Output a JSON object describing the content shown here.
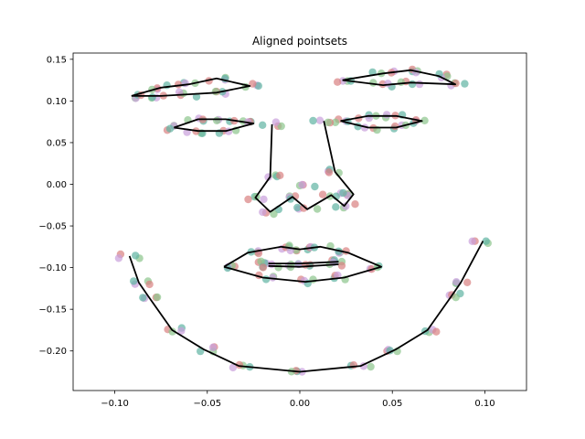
{
  "chart_data": {
    "type": "scatter",
    "title": "Aligned pointsets",
    "xlabel": "",
    "ylabel": "",
    "xlim": [
      -0.1225,
      0.1225
    ],
    "ylim": [
      -0.2475,
      0.1575
    ],
    "grid": false,
    "x_ticks": [
      -0.1,
      -0.05,
      0.0,
      0.05,
      0.1
    ],
    "x_tick_labels": [
      "−0.10",
      "−0.05",
      "0.00",
      "0.05",
      "0.10"
    ],
    "y_ticks": [
      -0.2,
      -0.15,
      -0.1,
      -0.05,
      0.0,
      0.05,
      0.1,
      0.15
    ],
    "y_tick_labels": [
      "−0.20",
      "−0.15",
      "−0.10",
      "−0.05",
      "0.00",
      "0.05",
      "0.10",
      "0.15"
    ],
    "point_colors": [
      "#d98080",
      "#8cc58c",
      "#c9a0dc",
      "#5fb3a3"
    ],
    "mean_shape": {
      "color": "#000000",
      "polylines": [
        [
          [
            -0.092,
            -0.086
          ],
          [
            -0.087,
            -0.118
          ],
          [
            -0.082,
            -0.134
          ],
          [
            -0.069,
            -0.175
          ],
          [
            -0.052,
            -0.198
          ],
          [
            -0.033,
            -0.218
          ],
          [
            0.0,
            -0.225
          ],
          [
            0.033,
            -0.218
          ],
          [
            0.052,
            -0.198
          ],
          [
            0.069,
            -0.175
          ],
          [
            0.082,
            -0.134
          ],
          [
            0.087,
            -0.118
          ],
          [
            0.099,
            -0.068
          ]
        ],
        [
          [
            -0.091,
            0.106
          ],
          [
            -0.075,
            0.116
          ],
          [
            -0.06,
            0.12
          ],
          [
            -0.045,
            0.127
          ],
          [
            -0.027,
            0.118
          ],
          [
            -0.045,
            0.11
          ],
          [
            -0.06,
            0.108
          ],
          [
            -0.075,
            0.106
          ],
          [
            -0.091,
            0.106
          ]
        ],
        [
          [
            0.023,
            0.125
          ],
          [
            0.045,
            0.133
          ],
          [
            0.06,
            0.137
          ],
          [
            0.075,
            0.13
          ],
          [
            0.084,
            0.12
          ],
          [
            0.06,
            0.122
          ],
          [
            0.045,
            0.119
          ],
          [
            0.023,
            0.125
          ]
        ],
        [
          [
            -0.068,
            0.068
          ],
          [
            -0.055,
            0.078
          ],
          [
            -0.04,
            0.078
          ],
          [
            -0.025,
            0.073
          ],
          [
            -0.04,
            0.064
          ],
          [
            -0.055,
            0.064
          ],
          [
            -0.068,
            0.068
          ]
        ],
        [
          [
            0.022,
            0.076
          ],
          [
            0.037,
            0.082
          ],
          [
            0.052,
            0.082
          ],
          [
            0.066,
            0.076
          ],
          [
            0.052,
            0.068
          ],
          [
            0.037,
            0.068
          ],
          [
            0.022,
            0.076
          ]
        ],
        [
          [
            -0.015,
            0.072
          ],
          [
            -0.016,
            0.009
          ],
          [
            -0.024,
            -0.016
          ],
          [
            -0.016,
            -0.033
          ],
          [
            -0.004,
            -0.015
          ],
          [
            0.004,
            -0.03
          ],
          [
            0.017,
            -0.013
          ],
          [
            0.024,
            -0.026
          ],
          [
            0.029,
            -0.012
          ],
          [
            0.019,
            0.015
          ],
          [
            0.013,
            0.076
          ]
        ],
        [
          [
            -0.041,
            -0.099
          ],
          [
            -0.028,
            -0.082
          ],
          [
            -0.01,
            -0.075
          ],
          [
            0.0,
            -0.078
          ],
          [
            0.011,
            -0.075
          ],
          [
            0.026,
            -0.082
          ],
          [
            0.044,
            -0.099
          ],
          [
            0.024,
            -0.112
          ],
          [
            0.003,
            -0.117
          ],
          [
            -0.02,
            -0.112
          ],
          [
            -0.041,
            -0.099
          ]
        ],
        [
          [
            -0.017,
            -0.095
          ],
          [
            0.0,
            -0.095
          ],
          [
            0.021,
            -0.093
          ]
        ],
        [
          [
            -0.017,
            -0.098
          ],
          [
            0.0,
            -0.099
          ],
          [
            0.021,
            -0.096
          ]
        ]
      ]
    },
    "landmarks": [
      [
        -0.092,
        -0.086
      ],
      [
        -0.087,
        -0.118
      ],
      [
        -0.082,
        -0.134
      ],
      [
        -0.069,
        -0.175
      ],
      [
        -0.052,
        -0.198
      ],
      [
        -0.033,
        -0.218
      ],
      [
        0.0,
        -0.225
      ],
      [
        0.033,
        -0.218
      ],
      [
        0.052,
        -0.198
      ],
      [
        0.069,
        -0.175
      ],
      [
        0.082,
        -0.134
      ],
      [
        0.087,
        -0.118
      ],
      [
        0.099,
        -0.068
      ],
      [
        -0.091,
        0.106
      ],
      [
        -0.075,
        0.116
      ],
      [
        -0.06,
        0.12
      ],
      [
        -0.045,
        0.127
      ],
      [
        -0.027,
        0.118
      ],
      [
        -0.045,
        0.11
      ],
      [
        -0.06,
        0.108
      ],
      [
        -0.075,
        0.106
      ],
      [
        0.023,
        0.125
      ],
      [
        0.045,
        0.133
      ],
      [
        0.06,
        0.137
      ],
      [
        0.075,
        0.13
      ],
      [
        0.084,
        0.12
      ],
      [
        0.06,
        0.122
      ],
      [
        0.045,
        0.119
      ],
      [
        -0.068,
        0.068
      ],
      [
        -0.055,
        0.078
      ],
      [
        -0.04,
        0.078
      ],
      [
        -0.025,
        0.073
      ],
      [
        -0.04,
        0.064
      ],
      [
        -0.055,
        0.064
      ],
      [
        0.022,
        0.076
      ],
      [
        0.037,
        0.082
      ],
      [
        0.052,
        0.082
      ],
      [
        0.066,
        0.076
      ],
      [
        0.052,
        0.068
      ],
      [
        0.037,
        0.068
      ],
      [
        -0.015,
        0.072
      ],
      [
        -0.016,
        0.009
      ],
      [
        -0.024,
        -0.016
      ],
      [
        -0.016,
        -0.033
      ],
      [
        -0.004,
        -0.015
      ],
      [
        0.004,
        -0.03
      ],
      [
        0.017,
        -0.013
      ],
      [
        0.024,
        -0.026
      ],
      [
        0.029,
        -0.012
      ],
      [
        0.019,
        0.015
      ],
      [
        0.013,
        0.076
      ],
      [
        0.003,
        0.0
      ],
      [
        -0.041,
        -0.099
      ],
      [
        -0.028,
        -0.082
      ],
      [
        -0.01,
        -0.075
      ],
      [
        0.0,
        -0.078
      ],
      [
        0.011,
        -0.075
      ],
      [
        0.026,
        -0.082
      ],
      [
        0.044,
        -0.099
      ],
      [
        0.024,
        -0.112
      ],
      [
        0.003,
        -0.117
      ],
      [
        -0.02,
        -0.112
      ],
      [
        -0.017,
        -0.095
      ],
      [
        0.0,
        -0.095
      ],
      [
        0.021,
        -0.093
      ],
      [
        -0.017,
        -0.098
      ],
      [
        0.0,
        -0.099
      ],
      [
        0.021,
        -0.096
      ]
    ]
  }
}
